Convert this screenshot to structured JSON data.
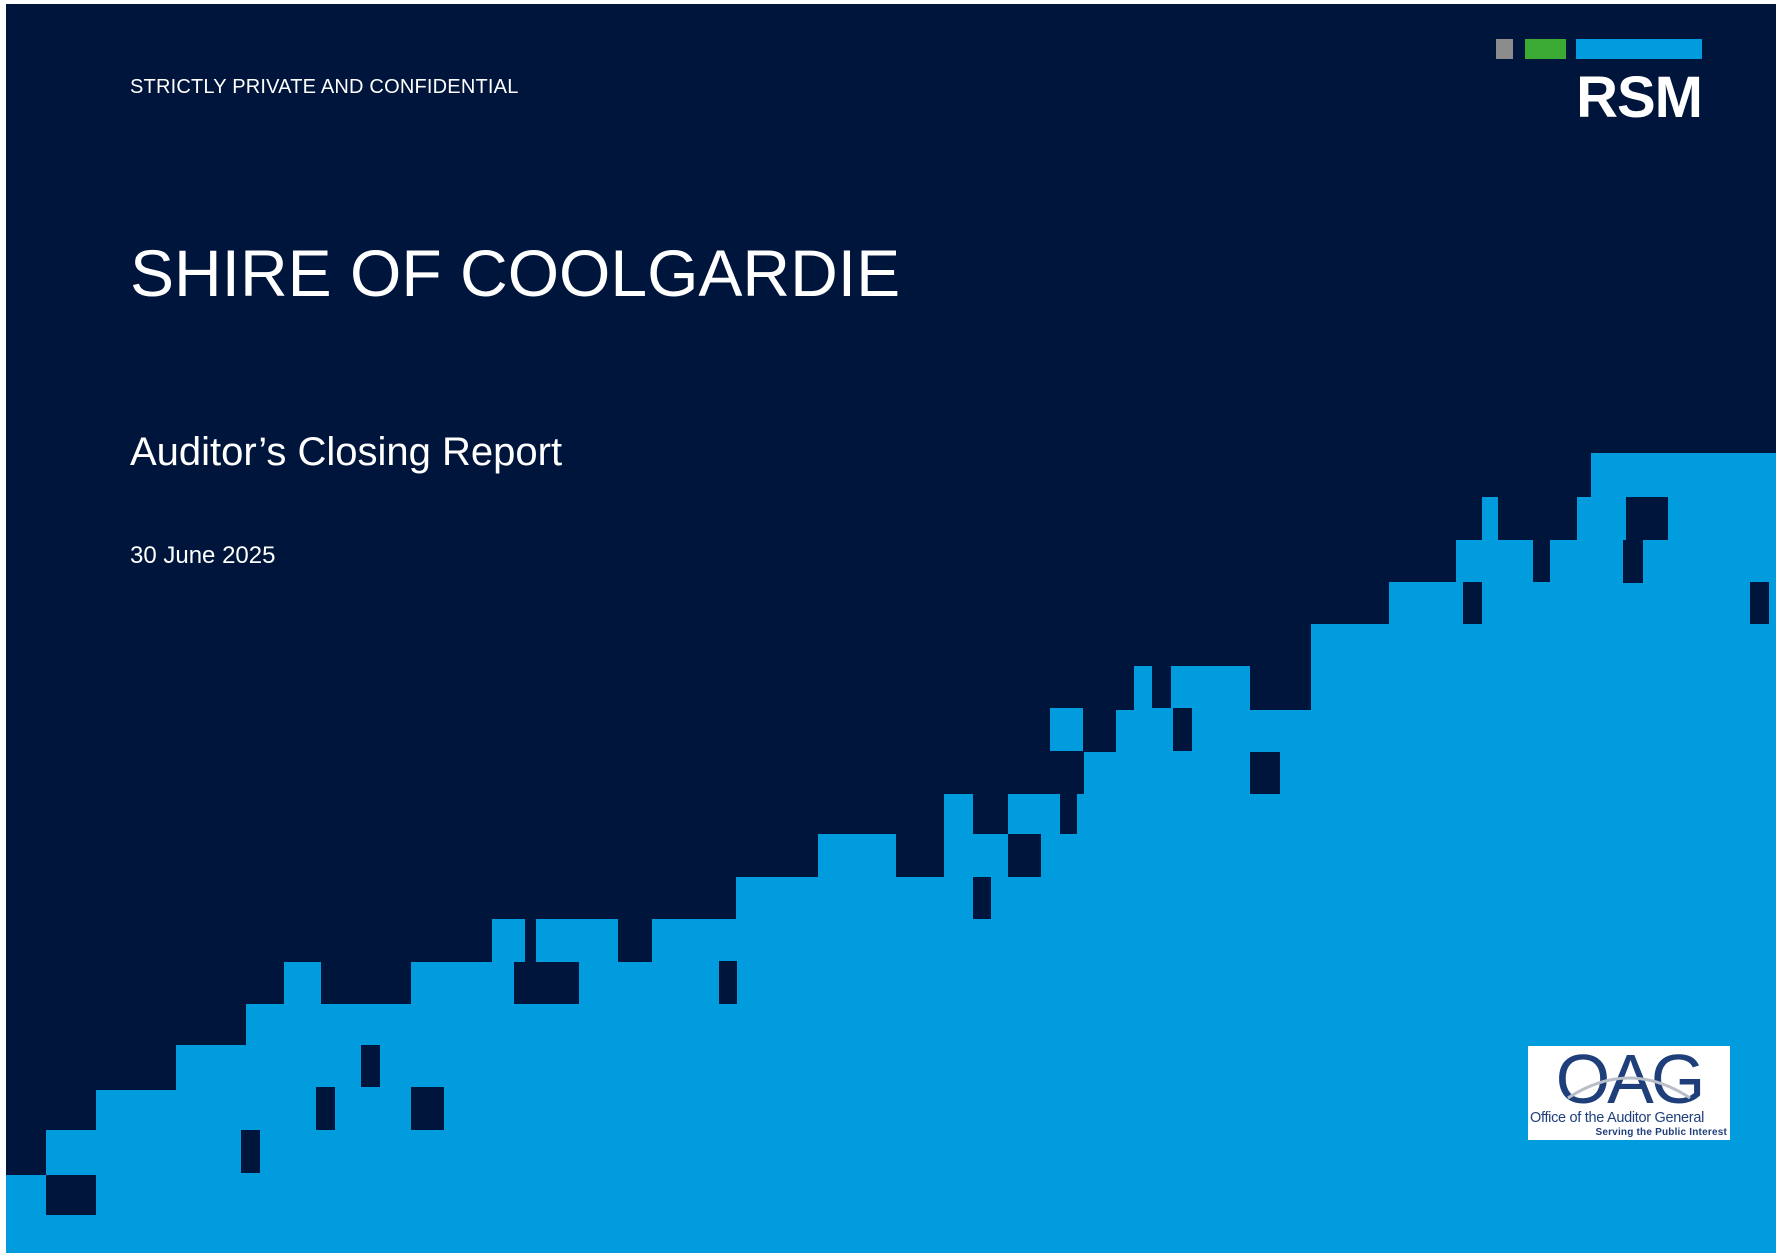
{
  "document": {
    "confidential_label": "STRICTLY PRIVATE AND CONFIDENTIAL",
    "title": "SHIRE OF COOLGARDIE",
    "subtitle": "Auditor’s Closing Report",
    "date": "30 June 2025"
  },
  "rsm_logo": {
    "text": "RSM",
    "bar_colors": [
      "#8c8c8c",
      "#3aaa35",
      "#009cde"
    ]
  },
  "oag_logo": {
    "letters": "OAG",
    "name": "Office of the Auditor General",
    "tagline": "Serving the Public Interest"
  },
  "colors": {
    "background": "#00153b",
    "accent_blue": "#009cde"
  }
}
